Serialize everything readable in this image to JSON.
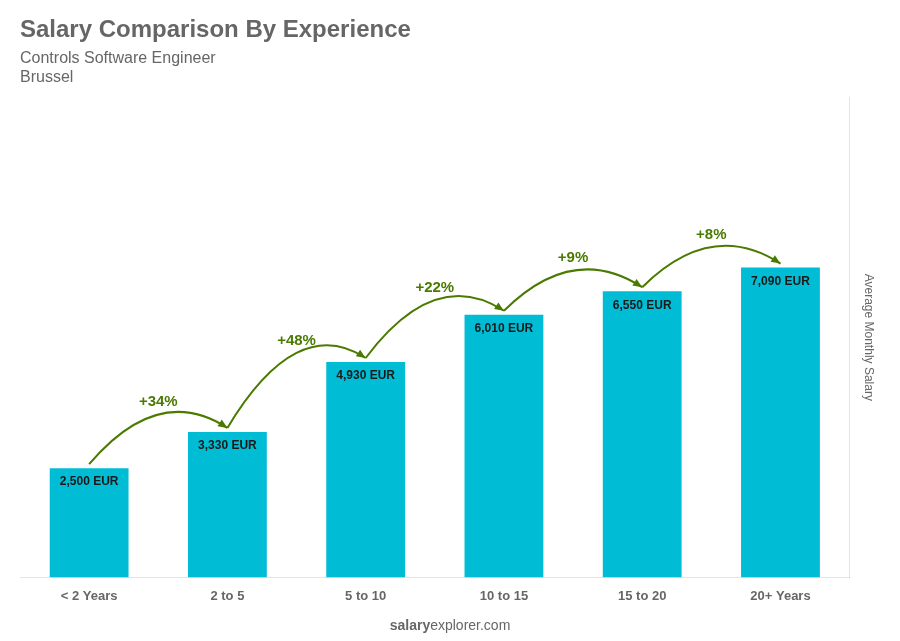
{
  "chart_data": {
    "type": "bar",
    "title": "Salary Comparison By Experience",
    "subtitle": [
      "Controls Software Engineer",
      "Brussel"
    ],
    "ylabel": "Average Monthly Salary",
    "footer": [
      "salary",
      "explorer.com"
    ],
    "categories": [
      "< 2 Years",
      "2 to 5",
      "5 to 10",
      "10 to 15",
      "15 to 20",
      "20+ Years"
    ],
    "values": [
      2500,
      3330,
      4930,
      6010,
      6550,
      7090
    ],
    "value_labels": [
      "2,500 EUR",
      "3,330 EUR",
      "4,930 EUR",
      "6,010 EUR",
      "6,550 EUR",
      "7,090 EUR"
    ],
    "data_labels": true,
    "annotations": [
      "+34%",
      "+48%",
      "+22%",
      "+9%",
      "+8%"
    ],
    "color": "#00bcd4",
    "ylim": [
      0,
      10989.5
    ],
    "tick_labels": "x",
    "grid": false
  }
}
